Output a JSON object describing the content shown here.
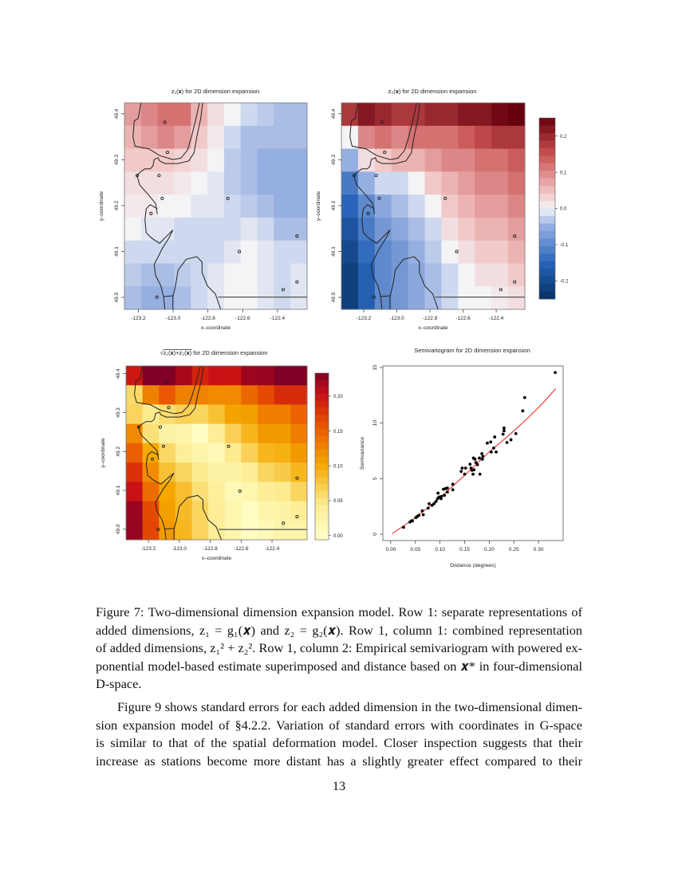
{
  "figure": {
    "maps": [
      {
        "title": "z₁(𝐱) for 2D dimension expansion",
        "xlabel": "x–coordinate",
        "ylabel": "y–coordinate",
        "xlim": [
          -123.28,
          -122.23
        ],
        "ylim": [
          48.974,
          49.424
        ],
        "xticks": [
          "-123.2",
          "-123.0",
          "-122.8",
          "-122.6",
          "-122.4"
        ],
        "yticks": [
          "49.0",
          "49.1",
          "49.2",
          "49.3",
          "49.4"
        ],
        "palette": "red-blue",
        "value_range": [
          -0.25,
          0.25
        ],
        "grid": [
          [
            0.08,
            0.1,
            0.12,
            0.12,
            0.06,
            0.02,
            0,
            -0.02,
            -0.03,
            -0.04,
            -0.04
          ],
          [
            0.06,
            0.08,
            0.1,
            0.08,
            0.04,
            0.01,
            -0.02,
            -0.04,
            -0.04,
            -0.04,
            -0.04
          ],
          [
            0.04,
            0.04,
            0.04,
            0.03,
            0.02,
            0,
            -0.03,
            -0.04,
            -0.05,
            -0.05,
            -0.05
          ],
          [
            0.02,
            0.02,
            0.02,
            0.01,
            0,
            -0.01,
            -0.03,
            -0.04,
            -0.05,
            -0.05,
            -0.05
          ],
          [
            0.01,
            0.01,
            0,
            0,
            -0.01,
            -0.01,
            -0.02,
            -0.03,
            -0.04,
            -0.05,
            -0.05
          ],
          [
            0,
            -0.01,
            -0.01,
            -0.02,
            -0.02,
            -0.02,
            -0.02,
            -0.01,
            -0.02,
            -0.04,
            -0.04
          ],
          [
            -0.02,
            -0.02,
            -0.02,
            -0.02,
            -0.02,
            -0.02,
            -0.01,
            0,
            -0.01,
            -0.02,
            -0.02
          ],
          [
            -0.03,
            -0.04,
            -0.04,
            -0.03,
            -0.02,
            -0.01,
            0,
            0,
            -0.01,
            -0.02,
            -0.01
          ],
          [
            -0.04,
            -0.05,
            -0.05,
            -0.04,
            -0.02,
            -0.01,
            0,
            0,
            -0.01,
            -0.02,
            -0.01
          ]
        ]
      },
      {
        "title": "z₂(𝐱) for 2D dimension expansion",
        "xlabel": "x–coordinate",
        "ylabel": "y–coordinate",
        "xlim": [
          -123.335,
          -122.227
        ],
        "ylim": [
          48.974,
          49.424
        ],
        "xticks": [
          "-123.2",
          "-123.0",
          "-122.8",
          "-122.6",
          "-122.4"
        ],
        "yticks": [
          "49.0",
          "49.1",
          "49.2",
          "49.3",
          "49.4"
        ],
        "palette": "red-blue",
        "value_range": [
          -0.25,
          0.25
        ],
        "colorbar": {
          "range": [
            -0.25,
            0.25
          ],
          "ticks": [
            "-0.2",
            "-0.1",
            "0.0",
            "0.1",
            "0.2"
          ],
          "tick_values": [
            -0.2,
            -0.1,
            0.0,
            0.1,
            0.2
          ]
        },
        "grid": [
          [
            0.18,
            0.22,
            0.2,
            0.18,
            0.18,
            0.2,
            0.2,
            0.22,
            0.22,
            0.24,
            0.25
          ],
          [
            0,
            0.1,
            0.12,
            0.1,
            0.12,
            0.12,
            0.12,
            0.14,
            0.16,
            0.18,
            0.18
          ],
          [
            -0.05,
            0.02,
            0.04,
            0.06,
            0.06,
            0.08,
            0.1,
            0.1,
            0.12,
            0.12,
            0.14
          ],
          [
            -0.12,
            -0.05,
            -0.02,
            -0.02,
            0,
            0.04,
            0.06,
            0.08,
            0.1,
            0.1,
            0.12
          ],
          [
            -0.15,
            -0.1,
            -0.06,
            -0.04,
            -0.02,
            0,
            0.04,
            0.06,
            0.08,
            0.08,
            0.1
          ],
          [
            -0.18,
            -0.12,
            -0.08,
            -0.06,
            -0.04,
            -0.02,
            0.02,
            0.04,
            0.06,
            0.06,
            0.08
          ],
          [
            -0.2,
            -0.14,
            -0.1,
            -0.08,
            -0.05,
            -0.03,
            0,
            0.02,
            0.04,
            0.04,
            0.06
          ],
          [
            -0.22,
            -0.16,
            -0.1,
            -0.08,
            -0.06,
            -0.04,
            -0.02,
            0,
            0.02,
            0.02,
            0.04
          ],
          [
            -0.22,
            -0.16,
            -0.1,
            -0.08,
            -0.06,
            -0.04,
            -0.02,
            0,
            0,
            0.01,
            0.02
          ]
        ]
      },
      {
        "title_radicand": "z₁(𝐱)+z₂(𝐱)",
        "title": " for 2D dimension expansion",
        "xlabel": "x–coordinate",
        "ylabel": "y–coordinate",
        "xlim": [
          -123.345,
          -122.173
        ],
        "ylim": [
          48.973,
          49.42
        ],
        "xticks": [
          "-123.2",
          "-123.0",
          "-122.8",
          "-122.6",
          "-122.4"
        ],
        "yticks": [
          "49.0",
          "49.1",
          "49.2",
          "49.3",
          "49.4"
        ],
        "palette": "heat",
        "value_range": [
          -0.006,
          0.233
        ],
        "colorbar": {
          "range": [
            -0.006,
            0.233
          ],
          "ticks": [
            "0.00",
            "0.05",
            "0.10",
            "0.15",
            "0.20"
          ],
          "tick_values": [
            0,
            0.05,
            0.1,
            0.15,
            0.2
          ]
        }
      }
    ],
    "stations": "circle-markers",
    "coastline": "black-contour-lines"
  },
  "chart_data": {
    "type": "scatter",
    "title": "Semivariogram for 2D dimension expansion",
    "xlabel": "Distance (degrees)",
    "ylabel": "Semivariance",
    "xlim": [
      -0.016,
      0.35
    ],
    "ylim": [
      -0.57,
      15.14
    ],
    "xticks": [
      "0.00",
      "0.05",
      "0.10",
      "0.15",
      "0.20",
      "0.25",
      "0.30"
    ],
    "xtick_values": [
      0,
      0.05,
      0.1,
      0.15,
      0.2,
      0.25,
      0.3
    ],
    "yticks": [
      "0",
      "5",
      "10",
      "15"
    ],
    "ytick_values": [
      0,
      5,
      10,
      15
    ],
    "grid": false,
    "points_color": "#000000",
    "fit_color": "#e8322a",
    "points": [
      [
        0.026,
        0.62
      ],
      [
        0.039,
        1.1
      ],
      [
        0.042,
        1.2
      ],
      [
        0.044,
        1.2
      ],
      [
        0.051,
        1.5
      ],
      [
        0.054,
        1.6
      ],
      [
        0.057,
        1.7
      ],
      [
        0.064,
        2.1
      ],
      [
        0.066,
        1.75
      ],
      [
        0.076,
        2.35
      ],
      [
        0.078,
        2.75
      ],
      [
        0.084,
        2.6
      ],
      [
        0.088,
        2.75
      ],
      [
        0.092,
        2.95
      ],
      [
        0.095,
        3.2
      ],
      [
        0.096,
        3.7
      ],
      [
        0.098,
        3.35
      ],
      [
        0.102,
        3.2
      ],
      [
        0.103,
        3.4
      ],
      [
        0.107,
        4.05
      ],
      [
        0.109,
        3.5
      ],
      [
        0.111,
        4.1
      ],
      [
        0.115,
        4.15
      ],
      [
        0.115,
        3.8
      ],
      [
        0.126,
        4.5
      ],
      [
        0.126,
        4.0
      ],
      [
        0.143,
        5.65
      ],
      [
        0.145,
        5.95
      ],
      [
        0.15,
        5.4
      ],
      [
        0.152,
        5.95
      ],
      [
        0.161,
        6.3
      ],
      [
        0.163,
        5.95
      ],
      [
        0.165,
        5.75
      ],
      [
        0.167,
        5.4
      ],
      [
        0.168,
        6.85
      ],
      [
        0.169,
        5.8
      ],
      [
        0.171,
        6.75
      ],
      [
        0.173,
        6.45
      ],
      [
        0.176,
        6.25
      ],
      [
        0.18,
        6.85
      ],
      [
        0.181,
        5.4
      ],
      [
        0.185,
        7.25
      ],
      [
        0.187,
        7.0
      ],
      [
        0.186,
        6.75
      ],
      [
        0.196,
        8.2
      ],
      [
        0.203,
        8.3
      ],
      [
        0.204,
        7.4
      ],
      [
        0.209,
        7.75
      ],
      [
        0.211,
        8.75
      ],
      [
        0.214,
        7.4
      ],
      [
        0.228,
        9.0
      ],
      [
        0.23,
        9.55
      ],
      [
        0.23,
        9.3
      ],
      [
        0.236,
        8.25
      ],
      [
        0.244,
        8.5
      ],
      [
        0.254,
        9.05
      ],
      [
        0.268,
        11.1
      ],
      [
        0.272,
        12.3
      ],
      [
        0.334,
        14.55
      ]
    ],
    "fit_curve": [
      [
        0.003,
        0.05
      ],
      [
        0.05,
        1.5
      ],
      [
        0.1,
        3.3
      ],
      [
        0.15,
        5.3
      ],
      [
        0.2,
        7.4
      ],
      [
        0.25,
        9.3
      ],
      [
        0.3,
        11.4
      ],
      [
        0.335,
        13.1
      ]
    ]
  },
  "caption": {
    "lines": [
      "Figure 7: Two-dimensional dimension expansion model. Row 1: separate representations of",
      "added dimensions, z₁ = g₁(𝒙) and z₂ = g₂(𝒙). Row 1, column 1: combined representation",
      "of added dimensions, z₁² + z₂². Row 1, column 2: Empirical semivariogram with powered ex-",
      "ponential model-based estimate superimposed and distance based on 𝒙* in four-dimensional",
      "D-space."
    ]
  },
  "paragraph": {
    "lines": [
      "Figure 9 shows standard errors for each added dimension in the two-dimensional dimen-",
      "sion expansion model of §4.2.2. Variation of standard errors with coordinates in G-space",
      "is similar to that of the spatial deformation model. Closer inspection suggests that their",
      "increase as stations become more distant has a slightly greater effect compared to their"
    ]
  },
  "page_number": "13"
}
